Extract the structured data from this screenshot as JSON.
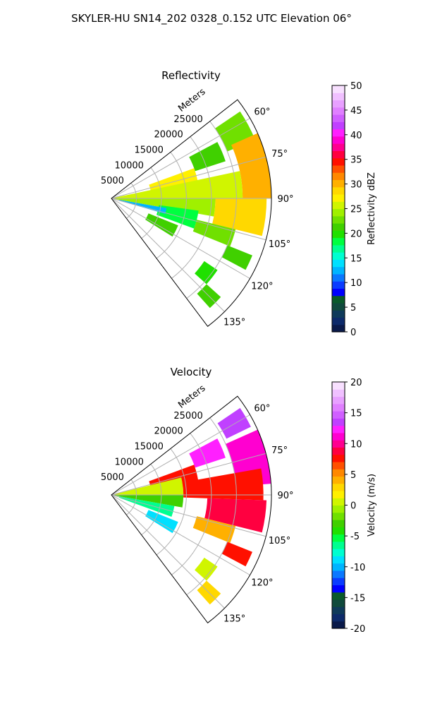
{
  "figure": {
    "suptitle": "SKYLER-HU  SN14_202  0328_0.152 UTC Elevation 06°"
  },
  "chart_data": [
    {
      "type": "heatmap",
      "title": "Reflectivity",
      "range_label": "Meters",
      "range_ticks": [
        5000,
        10000,
        15000,
        20000,
        25000
      ],
      "range_max": 32000,
      "azimuth_range_deg": [
        52,
        143
      ],
      "azimuth_ticks": [
        60,
        75,
        90,
        105,
        120,
        135
      ],
      "colorbar": {
        "label": "Reflectivity dBZ",
        "range": [
          0,
          50
        ],
        "ticks": [
          0,
          5,
          10,
          15,
          20,
          25,
          30,
          35,
          40,
          45,
          50
        ],
        "colors": [
          "#0a1a4a",
          "#0d2a6a",
          "#0f3a5a",
          "#104a3c",
          "#0a5a2a",
          "#0000ff",
          "#0a3cff",
          "#0a78ff",
          "#00b4ff",
          "#00e0ff",
          "#00ffd0",
          "#00ff90",
          "#00ff40",
          "#20e000",
          "#40d000",
          "#70e000",
          "#a0f000",
          "#d0f500",
          "#fff000",
          "#ffd800",
          "#ffb000",
          "#ff8800",
          "#ff5000",
          "#ff1000",
          "#ff0040",
          "#ff0090",
          "#ff00d0",
          "#ff20ff",
          "#c040ff",
          "#d060ff",
          "#e080ff",
          "#e8a0ff",
          "#f0c0ff",
          "#f8e0ff"
        ]
      },
      "field": [
        {
          "az0": 56,
          "az1": 68,
          "r0": 0.78,
          "r1": 0.97,
          "value": 23
        },
        {
          "az0": 62,
          "az1": 72,
          "r0": 0.55,
          "r1": 0.75,
          "value": 22
        },
        {
          "az0": 66,
          "az1": 90,
          "r0": 0.82,
          "r1": 1.0,
          "value": 30
        },
        {
          "az0": 70,
          "az1": 86,
          "r0": 0.25,
          "r1": 0.55,
          "value": 27
        },
        {
          "az0": 78,
          "az1": 90,
          "r0": 0.0,
          "r1": 0.82,
          "value": 26
        },
        {
          "az0": 90,
          "az1": 100,
          "r0": 0.0,
          "r1": 0.65,
          "value": 24
        },
        {
          "az0": 90,
          "az1": 104,
          "r0": 0.65,
          "r1": 0.97,
          "value": 28
        },
        {
          "az0": 98,
          "az1": 110,
          "r0": 0.3,
          "r1": 0.55,
          "value": 19
        },
        {
          "az0": 104,
          "az1": 112,
          "r0": 0.55,
          "r1": 0.8,
          "value": 23
        },
        {
          "az0": 112,
          "az1": 122,
          "r0": 0.25,
          "r1": 0.45,
          "value": 21
        },
        {
          "az0": 112,
          "az1": 118,
          "r0": 0.78,
          "r1": 0.95,
          "value": 22
        },
        {
          "az0": 124,
          "az1": 132,
          "r0": 0.7,
          "r1": 0.8,
          "value": 20
        },
        {
          "az0": 132,
          "az1": 138,
          "r0": 0.8,
          "r1": 0.92,
          "value": 21
        },
        {
          "az0": 100,
          "az1": 106,
          "r0": 0.05,
          "r1": 0.35,
          "value": 12
        }
      ]
    },
    {
      "type": "heatmap",
      "title": "Velocity",
      "range_label": "Meters",
      "range_ticks": [
        5000,
        10000,
        15000,
        20000,
        25000
      ],
      "range_max": 32000,
      "azimuth_range_deg": [
        52,
        143
      ],
      "azimuth_ticks": [
        60,
        75,
        90,
        105,
        120,
        135
      ],
      "colorbar": {
        "label": "Velocity (m/s)",
        "range": [
          -20,
          20
        ],
        "ticks": [
          -20,
          -15,
          -10,
          -5,
          0,
          5,
          10,
          15,
          20
        ],
        "colors": [
          "#0a1a4a",
          "#0d2a6a",
          "#0f3a5a",
          "#104a3c",
          "#0a5a2a",
          "#0000ff",
          "#0a3cff",
          "#0a78ff",
          "#00b4ff",
          "#00e0ff",
          "#00ffd0",
          "#00ff90",
          "#00ff40",
          "#20e000",
          "#40d000",
          "#70e000",
          "#a0f000",
          "#d0f500",
          "#fff000",
          "#ffd800",
          "#ffb000",
          "#ff8800",
          "#ff5000",
          "#ff1000",
          "#ff0040",
          "#ff0090",
          "#ff00d0",
          "#ff20ff",
          "#c040ff",
          "#d060ff",
          "#e080ff",
          "#e8a0ff",
          "#f0c0ff",
          "#f8e0ff"
        ]
      },
      "field": [
        {
          "az0": 56,
          "az1": 64,
          "r0": 0.8,
          "r1": 0.97,
          "value": 14
        },
        {
          "az0": 62,
          "az1": 72,
          "r0": 0.55,
          "r1": 0.75,
          "value": 12
        },
        {
          "az0": 66,
          "az1": 86,
          "r0": 0.78,
          "r1": 1.0,
          "value": 11
        },
        {
          "az0": 70,
          "az1": 84,
          "r0": 0.25,
          "r1": 0.55,
          "value": 8
        },
        {
          "az0": 76,
          "az1": 90,
          "r0": 0.0,
          "r1": 0.45,
          "value": 1
        },
        {
          "az0": 80,
          "az1": 92,
          "r0": 0.45,
          "r1": 0.95,
          "value": 8
        },
        {
          "az0": 90,
          "az1": 100,
          "r0": 0.0,
          "r1": 0.45,
          "value": -3
        },
        {
          "az0": 92,
          "az1": 104,
          "r0": 0.6,
          "r1": 0.97,
          "value": 9
        },
        {
          "az0": 100,
          "az1": 110,
          "r0": 0.05,
          "r1": 0.4,
          "value": -7
        },
        {
          "az0": 104,
          "az1": 112,
          "r0": 0.55,
          "r1": 0.8,
          "value": 4
        },
        {
          "az0": 112,
          "az1": 122,
          "r0": 0.25,
          "r1": 0.45,
          "value": -9
        },
        {
          "az0": 112,
          "az1": 118,
          "r0": 0.78,
          "r1": 0.95,
          "value": 8
        },
        {
          "az0": 124,
          "az1": 132,
          "r0": 0.7,
          "r1": 0.8,
          "value": 1
        },
        {
          "az0": 132,
          "az1": 138,
          "r0": 0.8,
          "r1": 0.92,
          "value": 3
        }
      ]
    }
  ]
}
